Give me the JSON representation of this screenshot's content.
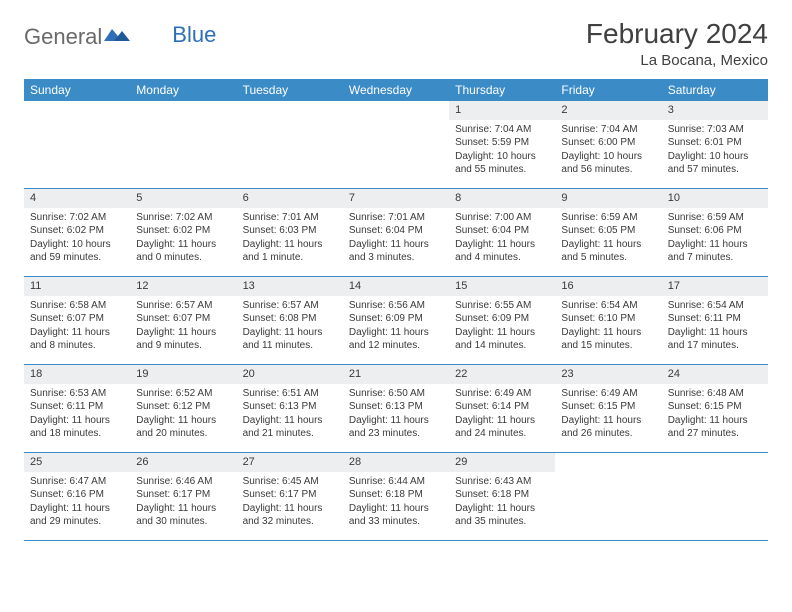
{
  "brand": {
    "name1": "General",
    "name2": "Blue"
  },
  "title": "February 2024",
  "location": "La Bocana, Mexico",
  "colors": {
    "header_bar": "#3b8bc7",
    "daynum_bg": "#eceeef",
    "rule": "#3b8bc7",
    "text": "#3a3a3a",
    "logo_gray": "#6a6a6a",
    "logo_blue": "#2f6fb5"
  },
  "daysOfWeek": [
    "Sunday",
    "Monday",
    "Tuesday",
    "Wednesday",
    "Thursday",
    "Friday",
    "Saturday"
  ],
  "weeks": [
    [
      {
        "empty": true
      },
      {
        "empty": true
      },
      {
        "empty": true
      },
      {
        "empty": true
      },
      {
        "n": "1",
        "sr": "Sunrise: 7:04 AM",
        "ss": "Sunset: 5:59 PM",
        "d1": "Daylight: 10 hours",
        "d2": "and 55 minutes."
      },
      {
        "n": "2",
        "sr": "Sunrise: 7:04 AM",
        "ss": "Sunset: 6:00 PM",
        "d1": "Daylight: 10 hours",
        "d2": "and 56 minutes."
      },
      {
        "n": "3",
        "sr": "Sunrise: 7:03 AM",
        "ss": "Sunset: 6:01 PM",
        "d1": "Daylight: 10 hours",
        "d2": "and 57 minutes."
      }
    ],
    [
      {
        "n": "4",
        "sr": "Sunrise: 7:02 AM",
        "ss": "Sunset: 6:02 PM",
        "d1": "Daylight: 10 hours",
        "d2": "and 59 minutes."
      },
      {
        "n": "5",
        "sr": "Sunrise: 7:02 AM",
        "ss": "Sunset: 6:02 PM",
        "d1": "Daylight: 11 hours",
        "d2": "and 0 minutes."
      },
      {
        "n": "6",
        "sr": "Sunrise: 7:01 AM",
        "ss": "Sunset: 6:03 PM",
        "d1": "Daylight: 11 hours",
        "d2": "and 1 minute."
      },
      {
        "n": "7",
        "sr": "Sunrise: 7:01 AM",
        "ss": "Sunset: 6:04 PM",
        "d1": "Daylight: 11 hours",
        "d2": "and 3 minutes."
      },
      {
        "n": "8",
        "sr": "Sunrise: 7:00 AM",
        "ss": "Sunset: 6:04 PM",
        "d1": "Daylight: 11 hours",
        "d2": "and 4 minutes."
      },
      {
        "n": "9",
        "sr": "Sunrise: 6:59 AM",
        "ss": "Sunset: 6:05 PM",
        "d1": "Daylight: 11 hours",
        "d2": "and 5 minutes."
      },
      {
        "n": "10",
        "sr": "Sunrise: 6:59 AM",
        "ss": "Sunset: 6:06 PM",
        "d1": "Daylight: 11 hours",
        "d2": "and 7 minutes."
      }
    ],
    [
      {
        "n": "11",
        "sr": "Sunrise: 6:58 AM",
        "ss": "Sunset: 6:07 PM",
        "d1": "Daylight: 11 hours",
        "d2": "and 8 minutes."
      },
      {
        "n": "12",
        "sr": "Sunrise: 6:57 AM",
        "ss": "Sunset: 6:07 PM",
        "d1": "Daylight: 11 hours",
        "d2": "and 9 minutes."
      },
      {
        "n": "13",
        "sr": "Sunrise: 6:57 AM",
        "ss": "Sunset: 6:08 PM",
        "d1": "Daylight: 11 hours",
        "d2": "and 11 minutes."
      },
      {
        "n": "14",
        "sr": "Sunrise: 6:56 AM",
        "ss": "Sunset: 6:09 PM",
        "d1": "Daylight: 11 hours",
        "d2": "and 12 minutes."
      },
      {
        "n": "15",
        "sr": "Sunrise: 6:55 AM",
        "ss": "Sunset: 6:09 PM",
        "d1": "Daylight: 11 hours",
        "d2": "and 14 minutes."
      },
      {
        "n": "16",
        "sr": "Sunrise: 6:54 AM",
        "ss": "Sunset: 6:10 PM",
        "d1": "Daylight: 11 hours",
        "d2": "and 15 minutes."
      },
      {
        "n": "17",
        "sr": "Sunrise: 6:54 AM",
        "ss": "Sunset: 6:11 PM",
        "d1": "Daylight: 11 hours",
        "d2": "and 17 minutes."
      }
    ],
    [
      {
        "n": "18",
        "sr": "Sunrise: 6:53 AM",
        "ss": "Sunset: 6:11 PM",
        "d1": "Daylight: 11 hours",
        "d2": "and 18 minutes."
      },
      {
        "n": "19",
        "sr": "Sunrise: 6:52 AM",
        "ss": "Sunset: 6:12 PM",
        "d1": "Daylight: 11 hours",
        "d2": "and 20 minutes."
      },
      {
        "n": "20",
        "sr": "Sunrise: 6:51 AM",
        "ss": "Sunset: 6:13 PM",
        "d1": "Daylight: 11 hours",
        "d2": "and 21 minutes."
      },
      {
        "n": "21",
        "sr": "Sunrise: 6:50 AM",
        "ss": "Sunset: 6:13 PM",
        "d1": "Daylight: 11 hours",
        "d2": "and 23 minutes."
      },
      {
        "n": "22",
        "sr": "Sunrise: 6:49 AM",
        "ss": "Sunset: 6:14 PM",
        "d1": "Daylight: 11 hours",
        "d2": "and 24 minutes."
      },
      {
        "n": "23",
        "sr": "Sunrise: 6:49 AM",
        "ss": "Sunset: 6:15 PM",
        "d1": "Daylight: 11 hours",
        "d2": "and 26 minutes."
      },
      {
        "n": "24",
        "sr": "Sunrise: 6:48 AM",
        "ss": "Sunset: 6:15 PM",
        "d1": "Daylight: 11 hours",
        "d2": "and 27 minutes."
      }
    ],
    [
      {
        "n": "25",
        "sr": "Sunrise: 6:47 AM",
        "ss": "Sunset: 6:16 PM",
        "d1": "Daylight: 11 hours",
        "d2": "and 29 minutes."
      },
      {
        "n": "26",
        "sr": "Sunrise: 6:46 AM",
        "ss": "Sunset: 6:17 PM",
        "d1": "Daylight: 11 hours",
        "d2": "and 30 minutes."
      },
      {
        "n": "27",
        "sr": "Sunrise: 6:45 AM",
        "ss": "Sunset: 6:17 PM",
        "d1": "Daylight: 11 hours",
        "d2": "and 32 minutes."
      },
      {
        "n": "28",
        "sr": "Sunrise: 6:44 AM",
        "ss": "Sunset: 6:18 PM",
        "d1": "Daylight: 11 hours",
        "d2": "and 33 minutes."
      },
      {
        "n": "29",
        "sr": "Sunrise: 6:43 AM",
        "ss": "Sunset: 6:18 PM",
        "d1": "Daylight: 11 hours",
        "d2": "and 35 minutes."
      },
      {
        "empty": true
      },
      {
        "empty": true
      }
    ]
  ]
}
